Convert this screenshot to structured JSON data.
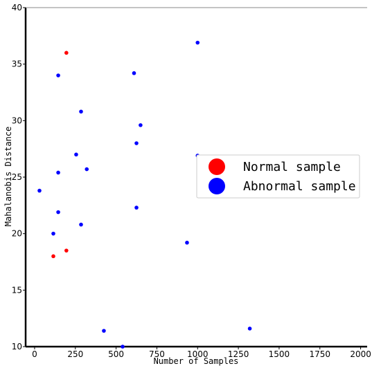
{
  "chart_data": {
    "type": "scatter",
    "title": "",
    "xlabel": "Number of Samples",
    "ylabel": "Mahalanobis Distance",
    "xlim": [
      -55,
      2040
    ],
    "ylim": [
      10,
      40
    ],
    "x_ticks": [
      0,
      250,
      500,
      750,
      1000,
      1250,
      1500,
      1750,
      2000
    ],
    "y_ticks": [
      10,
      15,
      20,
      25,
      30,
      35,
      40
    ],
    "grid": false,
    "legend_position": "center-right",
    "series": [
      {
        "name": "Normal sample",
        "color": "#ff0000",
        "points": [
          {
            "x": 195,
            "y": 36.0
          },
          {
            "x": 195,
            "y": 18.5
          },
          {
            "x": 115,
            "y": 18.0
          }
        ]
      },
      {
        "name": "Abnormal sample",
        "color": "#0000ff",
        "points": [
          {
            "x": 1000,
            "y": 36.9
          },
          {
            "x": 145,
            "y": 34.0
          },
          {
            "x": 610,
            "y": 34.2
          },
          {
            "x": 285,
            "y": 30.8
          },
          {
            "x": 650,
            "y": 29.6
          },
          {
            "x": 625,
            "y": 28.0
          },
          {
            "x": 255,
            "y": 27.0
          },
          {
            "x": 1000,
            "y": 26.9
          },
          {
            "x": 320,
            "y": 25.7
          },
          {
            "x": 145,
            "y": 25.4
          },
          {
            "x": 30,
            "y": 23.8
          },
          {
            "x": 625,
            "y": 22.3
          },
          {
            "x": 145,
            "y": 21.9
          },
          {
            "x": 285,
            "y": 20.8
          },
          {
            "x": 115,
            "y": 20.0
          },
          {
            "x": 935,
            "y": 19.2
          },
          {
            "x": 1320,
            "y": 11.6
          },
          {
            "x": 425,
            "y": 11.4
          },
          {
            "x": 540,
            "y": 10.0
          }
        ]
      }
    ]
  }
}
